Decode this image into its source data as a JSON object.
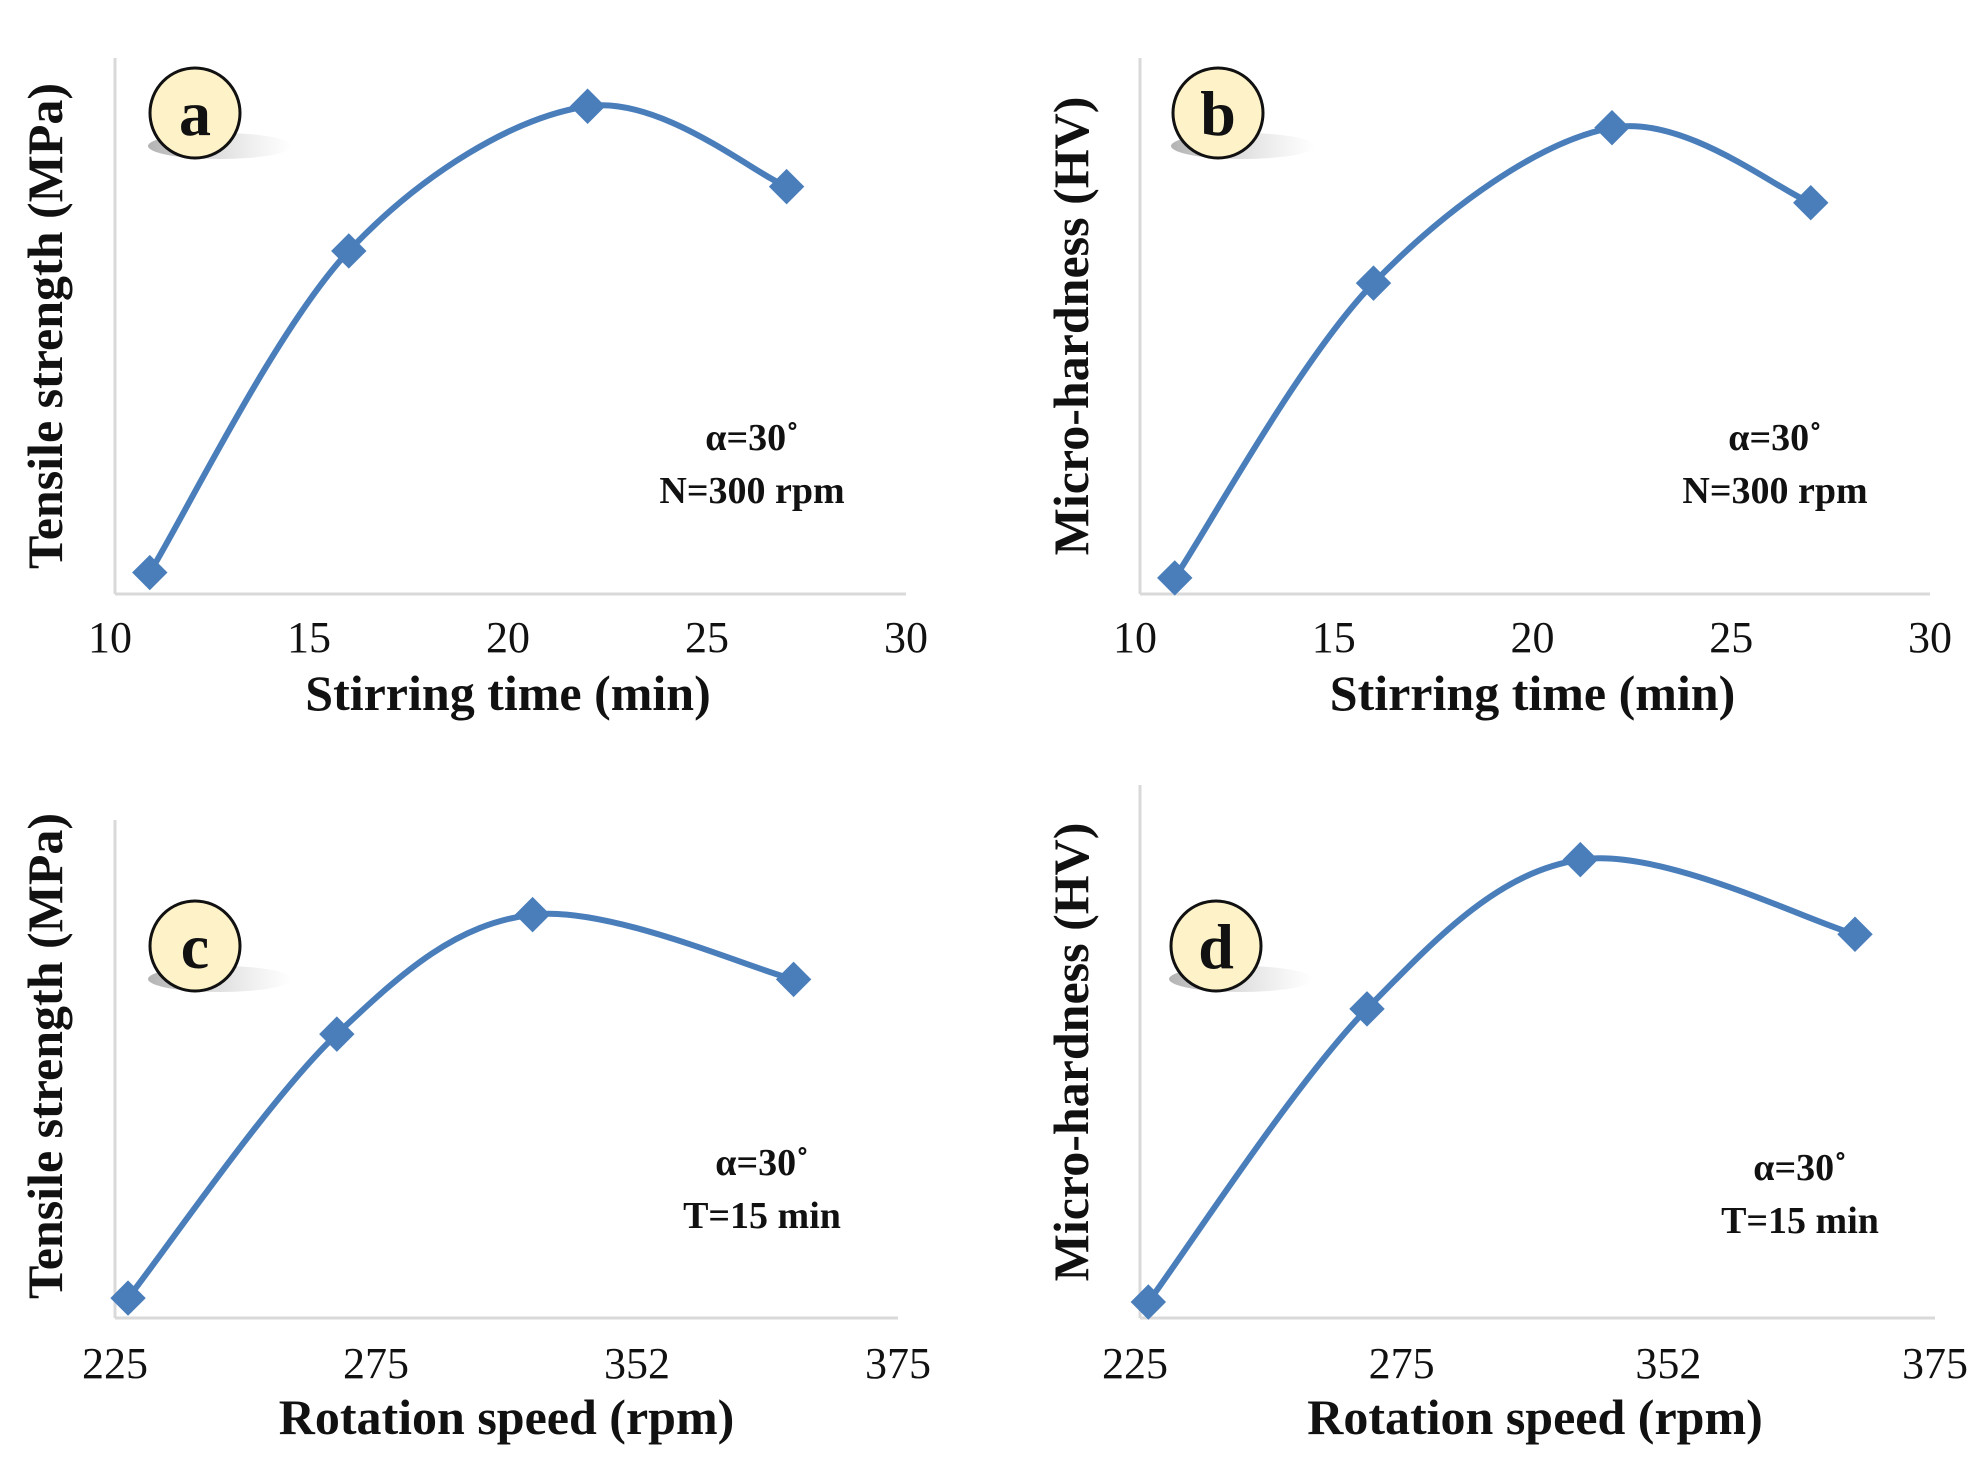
{
  "colors": {
    "series": "#4a7ebb",
    "axis": "#d9d9d9",
    "badge_fill": "#fdf2c8",
    "badge_stroke": "#111111",
    "text": "#111111"
  },
  "chart_data": [
    {
      "type": "line",
      "panel_label": "a",
      "xlabel": "Stirring time (min)",
      "ylabel": "Tensile strength (MPa)",
      "x_ticks": [
        "10",
        "15",
        "20",
        "25",
        "30"
      ],
      "xlim": [
        10,
        30
      ],
      "ylim": [
        0,
        100
      ],
      "x": [
        11,
        16,
        22,
        27
      ],
      "values": [
        4,
        64,
        91,
        76
      ],
      "annotation": {
        "line1": "α=30˚",
        "line2": "N=300 rpm"
      },
      "marker": "diamond"
    },
    {
      "type": "line",
      "panel_label": "b",
      "xlabel": "Stirring time (min)",
      "ylabel": "Micro-hardness (HV)",
      "x_ticks": [
        "10",
        "15",
        "20",
        "25",
        "30"
      ],
      "xlim": [
        10,
        30
      ],
      "ylim": [
        0,
        100
      ],
      "x": [
        11,
        16,
        22,
        27
      ],
      "values": [
        3,
        58,
        87,
        73
      ],
      "annotation": {
        "line1": "α=30˚",
        "line2": "N=300 rpm"
      },
      "marker": "diamond"
    },
    {
      "type": "line",
      "panel_label": "c",
      "xlabel": "Rotation speed (rpm)",
      "ylabel": "Tensile strength (MPa)",
      "x_ticks": [
        "225",
        "275",
        "352",
        "375"
      ],
      "xlim": [
        0,
        3
      ],
      "ylim": [
        0,
        100
      ],
      "x": [
        0.05,
        0.85,
        1.6,
        2.6
      ],
      "values": [
        4,
        57,
        81,
        68
      ],
      "annotation": {
        "line1": "α=30˚",
        "line2": "T=15 min"
      },
      "marker": "diamond"
    },
    {
      "type": "line",
      "panel_label": "d",
      "xlabel": "Rotation speed (rpm)",
      "ylabel": "Micro-hardness (HV)",
      "x_ticks": [
        "225",
        "275",
        "352",
        "375"
      ],
      "xlim": [
        0,
        3
      ],
      "ylim": [
        0,
        100
      ],
      "x": [
        0.05,
        0.87,
        1.67,
        2.7
      ],
      "values": [
        3,
        58,
        86,
        72
      ],
      "annotation": {
        "line1": "α=30˚",
        "line2": "T=15 min"
      },
      "marker": "diamond"
    }
  ]
}
